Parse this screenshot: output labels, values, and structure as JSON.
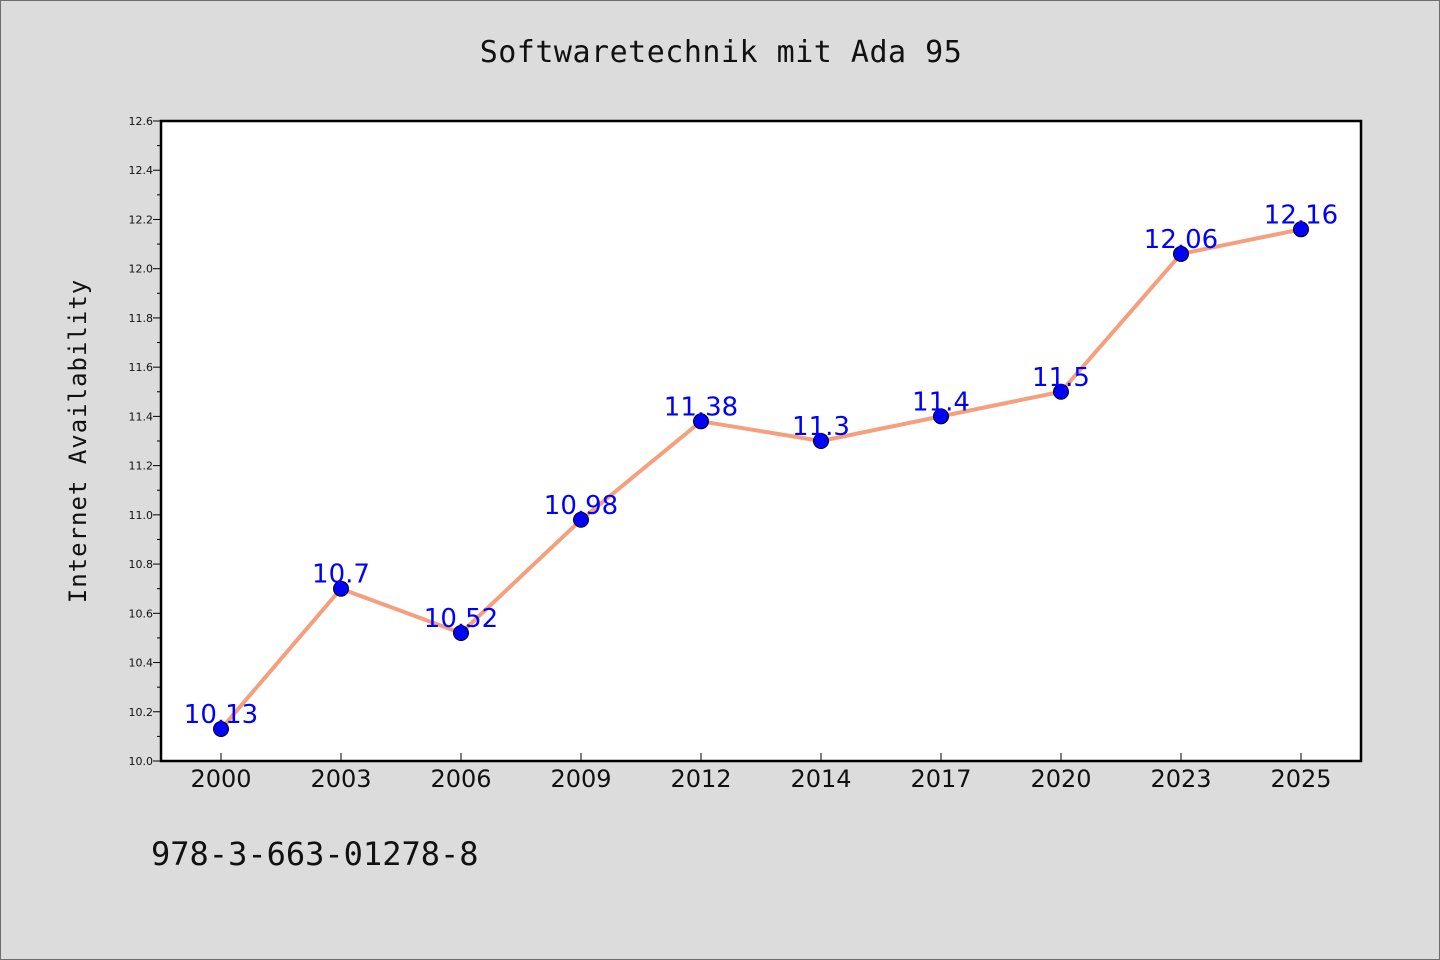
{
  "title": "Softwaretechnik mit Ada 95",
  "footer_text": "978-3-663-01278-8",
  "colors": {
    "background": "#dcdcdc",
    "plot_background": "#ffffff",
    "line": "#f4a07e",
    "marker": "#0000ff",
    "data_label": "#0000ff"
  },
  "chart_data": {
    "type": "line",
    "categories": [
      "2000",
      "2003",
      "2006",
      "2009",
      "2012",
      "2014",
      "2017",
      "2020",
      "2023",
      "2025"
    ],
    "series": [
      {
        "values": [
          10.13,
          10.7,
          10.52,
          10.98,
          11.38,
          11.3,
          11.4,
          11.5,
          12.06,
          12.16
        ]
      }
    ],
    "data_labels": [
      "10.13",
      "10.7",
      "10.52",
      "10.98",
      "11.38",
      "11.3",
      "11.4",
      "11.5",
      "12.06",
      "12.16"
    ],
    "xlabel": "",
    "ylabel": "Internet Availability",
    "ylim": [
      10.0,
      12.6
    ],
    "yticks": [
      "10.0",
      "10.2",
      "10.4",
      "10.6",
      "10.8",
      "11.0",
      "11.2",
      "11.4",
      "11.6",
      "11.8",
      "12.0",
      "12.2",
      "12.4",
      "12.6"
    ],
    "grid": false,
    "legend": "none"
  }
}
